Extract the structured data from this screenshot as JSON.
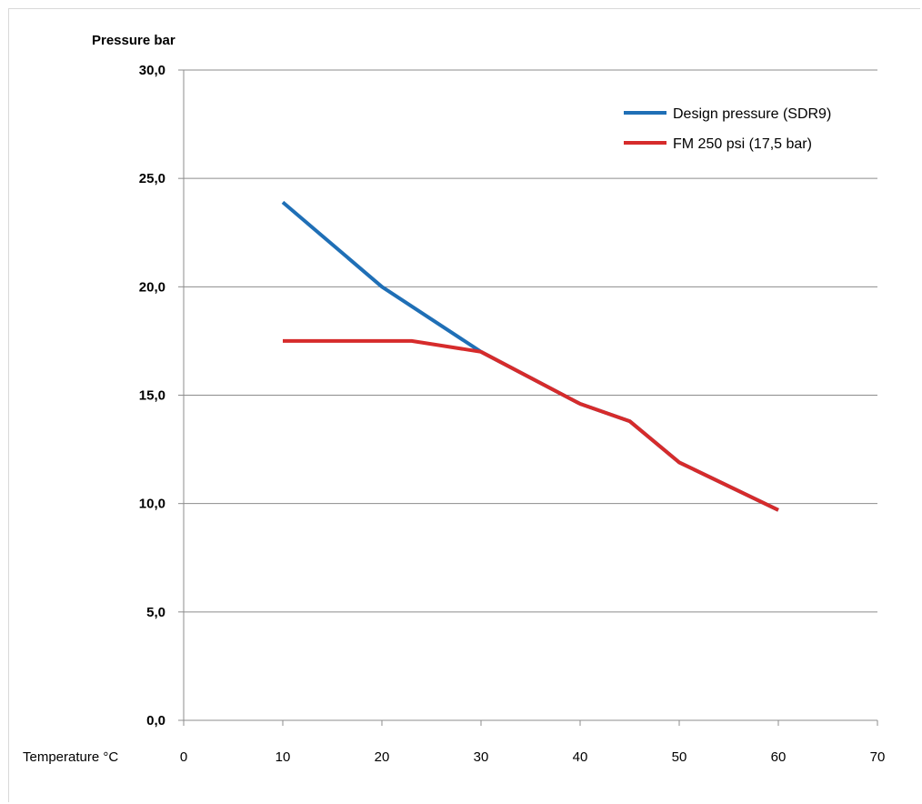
{
  "chart_data": {
    "type": "line",
    "ylabel": "Pressure bar",
    "xlabel": "Temperature °C",
    "xlim": [
      0,
      70
    ],
    "ylim": [
      0,
      30
    ],
    "x_ticks": [
      "0",
      "10",
      "20",
      "30",
      "40",
      "50",
      "60",
      "70"
    ],
    "y_ticks": [
      "0,0",
      "5,0",
      "10,0",
      "15,0",
      "20,0",
      "25,0",
      "30,0"
    ],
    "grid": "horizontal",
    "legend_position": "top-right",
    "series": [
      {
        "name": "Design pressure (SDR9)",
        "color": "#1f6fb6",
        "points": [
          [
            10,
            23.9
          ],
          [
            20,
            20.0
          ],
          [
            30,
            17.0
          ],
          [
            40,
            14.6
          ],
          [
            45,
            13.8
          ],
          [
            50,
            11.9
          ],
          [
            60,
            9.7
          ]
        ]
      },
      {
        "name": "FM 250 psi (17,5 bar)",
        "color": "#d62b2b",
        "points": [
          [
            10,
            17.5
          ],
          [
            23,
            17.5
          ],
          [
            30,
            17.0
          ],
          [
            40,
            14.6
          ],
          [
            45,
            13.8
          ],
          [
            50,
            11.9
          ],
          [
            60,
            9.7
          ]
        ]
      }
    ]
  }
}
